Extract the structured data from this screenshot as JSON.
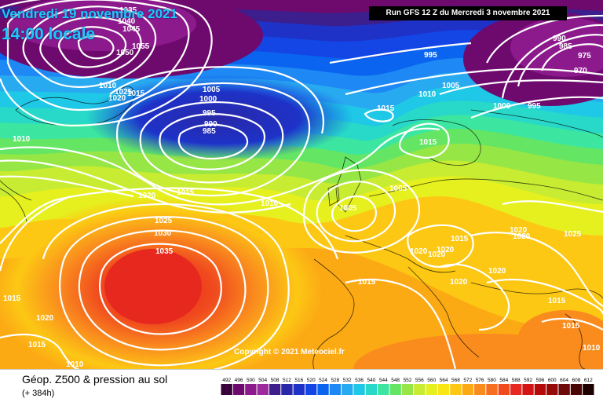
{
  "header": {
    "date": "Vendredi 19 novembre 2021",
    "time": "14:00 locale",
    "run": "Run GFS 12 Z du Mercredi 3 novembre 2021"
  },
  "copyright": "Copyright © 2021 Meteociel.fr",
  "footer": {
    "title": "Géop. Z500 & pression au sol",
    "subtitle": "(+ 384h)"
  },
  "legend": {
    "ticks": [
      "492",
      "496",
      "500",
      "504",
      "508",
      "512",
      "516",
      "520",
      "524",
      "528",
      "532",
      "536",
      "540",
      "544",
      "548",
      "552",
      "556",
      "560",
      "564",
      "568",
      "572",
      "576",
      "580",
      "584",
      "588",
      "592",
      "596",
      "600",
      "604",
      "608",
      "612"
    ],
    "colors": [
      "#3a003c",
      "#6e0a6e",
      "#8c1a8c",
      "#9c2a9c",
      "#3c1e8c",
      "#2828a8",
      "#1e32c8",
      "#1446e6",
      "#0a64f0",
      "#1e88f4",
      "#28aaf0",
      "#1ec8e6",
      "#28d8c8",
      "#3ce6a0",
      "#64e664",
      "#96e646",
      "#c8ec32",
      "#e6f01e",
      "#fae614",
      "#fcc814",
      "#fcaa14",
      "#fa8c1e",
      "#f66e1e",
      "#f04a1e",
      "#e6281e",
      "#d21414",
      "#b40a0a",
      "#960a0a",
      "#6e0a0a",
      "#4a0505",
      "#1e0000"
    ]
  },
  "pressure_labels": [
    "1035",
    "1040",
    "1045",
    "1050",
    "1055",
    "1010",
    "1020",
    "1025",
    "1015",
    "1005",
    "1000",
    "995",
    "990",
    "985",
    "1015",
    "1010",
    "1020",
    "1015",
    "1010",
    "1025",
    "1030",
    "1035",
    "1015",
    "1020",
    "1015",
    "1010",
    "995",
    "1010",
    "1005",
    "1000",
    "995",
    "990",
    "985",
    "975",
    "970",
    "1015",
    "1005",
    "1005",
    "1020",
    "1020",
    "1015",
    "1020",
    "1020",
    "1020",
    "1025",
    "1015",
    "1020",
    "1020",
    "1015",
    "1010",
    "1015"
  ]
}
